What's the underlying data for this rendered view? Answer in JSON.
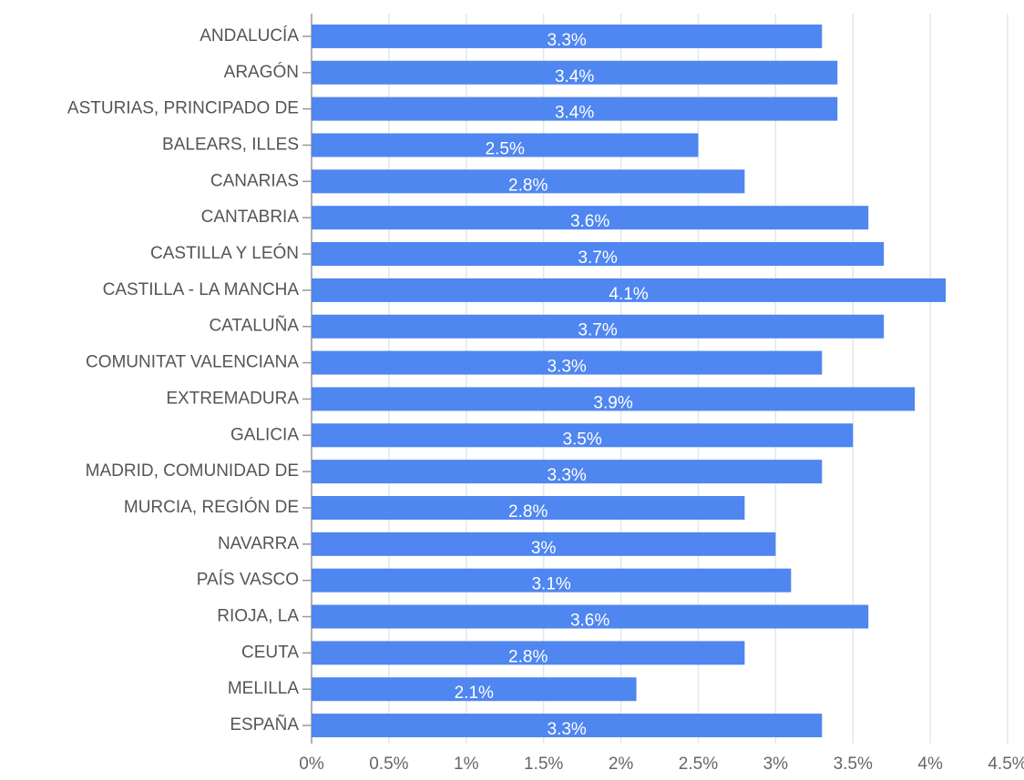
{
  "chart_data": {
    "type": "bar",
    "orientation": "horizontal",
    "categories": [
      "ANDALUCÍA",
      "ARAGÓN",
      "ASTURIAS, PRINCIPADO DE",
      "BALEARS, ILLES",
      "CANARIAS",
      "CANTABRIA",
      "CASTILLA Y LEÓN",
      "CASTILLA - LA MANCHA",
      "CATALUÑA",
      "COMUNITAT VALENCIANA",
      "EXTREMADURA",
      "GALICIA",
      "MADRID, COMUNIDAD DE",
      "MURCIA, REGIÓN DE",
      "NAVARRA",
      "PAÍS VASCO",
      "RIOJA, LA",
      "CEUTA",
      "MELILLA",
      "ESPAÑA"
    ],
    "values": [
      3.3,
      3.4,
      3.4,
      2.5,
      2.8,
      3.6,
      3.7,
      4.1,
      3.7,
      3.3,
      3.9,
      3.5,
      3.3,
      2.8,
      3,
      3.1,
      3.6,
      2.8,
      2.1,
      3.3
    ],
    "value_labels": [
      "3.3%",
      "3.4%",
      "3.4%",
      "2.5%",
      "2.8%",
      "3.6%",
      "3.7%",
      "4.1%",
      "3.7%",
      "3.3%",
      "3.9%",
      "3.5%",
      "3.3%",
      "2.8%",
      "3%",
      "3.1%",
      "3.6%",
      "2.8%",
      "2.1%",
      "3.3%"
    ],
    "color": "#4f86f0",
    "xlim": [
      0,
      4.5
    ],
    "xticks": [
      {
        "value": 0,
        "label": "0%"
      },
      {
        "value": 0.5,
        "label": "0.5%"
      },
      {
        "value": 1,
        "label": "1%"
      },
      {
        "value": 1.5,
        "label": "1.5%"
      },
      {
        "value": 2,
        "label": "2%"
      },
      {
        "value": 2.5,
        "label": "2.5%"
      },
      {
        "value": 3,
        "label": "3%"
      },
      {
        "value": 3.5,
        "label": "3.5%"
      },
      {
        "value": 4,
        "label": "4%"
      },
      {
        "value": 4.5,
        "label": "4.5%"
      }
    ],
    "grid": true
  }
}
